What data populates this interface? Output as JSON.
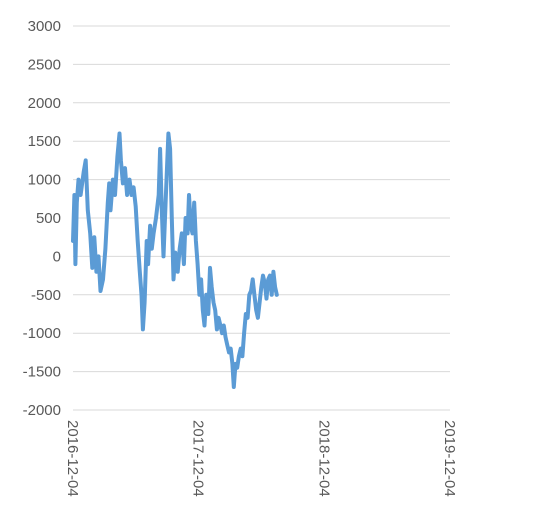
{
  "chart_data": {
    "type": "line",
    "title": "",
    "xlabel": "",
    "ylabel": "",
    "ylim": [
      -2000,
      3000
    ],
    "yticks": [
      3000,
      2500,
      2000,
      1500,
      1000,
      500,
      0,
      -500,
      -1000,
      -1500,
      -2000
    ],
    "xlim": [
      "2016-12-04",
      "2019-12-04"
    ],
    "xticks": [
      "2016-12-04",
      "2017-12-04",
      "2018-12-04",
      "2019-12-04"
    ],
    "grid": true,
    "legend": "none",
    "colors": {
      "series": "#5b9bd5",
      "grid": "#d9d9d9",
      "text": "#595959"
    },
    "series": [
      {
        "color": "#5b9bd5",
        "points": [
          [
            "2016-12-04",
            200
          ],
          [
            "2016-12-08",
            800
          ],
          [
            "2016-12-11",
            -100
          ],
          [
            "2016-12-15",
            700
          ],
          [
            "2016-12-20",
            1000
          ],
          [
            "2016-12-26",
            800
          ],
          [
            "2017-01-04",
            1100
          ],
          [
            "2017-01-10",
            1250
          ],
          [
            "2017-01-16",
            600
          ],
          [
            "2017-01-23",
            300
          ],
          [
            "2017-01-29",
            -150
          ],
          [
            "2017-02-04",
            250
          ],
          [
            "2017-02-10",
            -200
          ],
          [
            "2017-02-16",
            0
          ],
          [
            "2017-02-22",
            -450
          ],
          [
            "2017-03-01",
            -300
          ],
          [
            "2017-03-08",
            100
          ],
          [
            "2017-03-15",
            700
          ],
          [
            "2017-03-19",
            950
          ],
          [
            "2017-03-23",
            600
          ],
          [
            "2017-03-30",
            1000
          ],
          [
            "2017-04-05",
            800
          ],
          [
            "2017-04-12",
            1300
          ],
          [
            "2017-04-18",
            1600
          ],
          [
            "2017-04-22",
            1250
          ],
          [
            "2017-04-28",
            950
          ],
          [
            "2017-05-04",
            1150
          ],
          [
            "2017-05-10",
            800
          ],
          [
            "2017-05-17",
            1000
          ],
          [
            "2017-05-23",
            800
          ],
          [
            "2017-05-29",
            900
          ],
          [
            "2017-06-04",
            650
          ],
          [
            "2017-06-10",
            200
          ],
          [
            "2017-06-16",
            -200
          ],
          [
            "2017-06-21",
            -500
          ],
          [
            "2017-06-25",
            -950
          ],
          [
            "2017-06-30",
            -600
          ],
          [
            "2017-07-06",
            200
          ],
          [
            "2017-07-10",
            -100
          ],
          [
            "2017-07-16",
            400
          ],
          [
            "2017-07-21",
            100
          ],
          [
            "2017-07-26",
            300
          ],
          [
            "2017-08-02",
            500
          ],
          [
            "2017-08-10",
            800
          ],
          [
            "2017-08-14",
            1400
          ],
          [
            "2017-08-19",
            600
          ],
          [
            "2017-08-24",
            0
          ],
          [
            "2017-08-30",
            700
          ],
          [
            "2017-09-04",
            1250
          ],
          [
            "2017-09-07",
            1600
          ],
          [
            "2017-09-12",
            1400
          ],
          [
            "2017-09-17",
            500
          ],
          [
            "2017-09-22",
            -300
          ],
          [
            "2017-09-27",
            50
          ],
          [
            "2017-10-04",
            -200
          ],
          [
            "2017-10-10",
            100
          ],
          [
            "2017-10-16",
            300
          ],
          [
            "2017-10-22",
            -100
          ],
          [
            "2017-10-27",
            500
          ],
          [
            "2017-11-02",
            300
          ],
          [
            "2017-11-06",
            800
          ],
          [
            "2017-11-11",
            400
          ],
          [
            "2017-11-16",
            300
          ],
          [
            "2017-11-21",
            700
          ],
          [
            "2017-11-26",
            200
          ],
          [
            "2017-12-01",
            -100
          ],
          [
            "2017-12-06",
            -500
          ],
          [
            "2017-12-11",
            -300
          ],
          [
            "2017-12-16",
            -700
          ],
          [
            "2017-12-21",
            -900
          ],
          [
            "2017-12-26",
            -500
          ],
          [
            "2018-01-01",
            -750
          ],
          [
            "2018-01-06",
            -150
          ],
          [
            "2018-01-11",
            -400
          ],
          [
            "2018-01-16",
            -600
          ],
          [
            "2018-01-21",
            -700
          ],
          [
            "2018-01-26",
            -950
          ],
          [
            "2018-01-31",
            -800
          ],
          [
            "2018-02-05",
            -900
          ],
          [
            "2018-02-10",
            -1000
          ],
          [
            "2018-02-15",
            -900
          ],
          [
            "2018-02-20",
            -1050
          ],
          [
            "2018-02-25",
            -1150
          ],
          [
            "2018-03-02",
            -1250
          ],
          [
            "2018-03-07",
            -1200
          ],
          [
            "2018-03-12",
            -1400
          ],
          [
            "2018-03-16",
            -1700
          ],
          [
            "2018-03-21",
            -1400
          ],
          [
            "2018-03-26",
            -1450
          ],
          [
            "2018-03-31",
            -1300
          ],
          [
            "2018-04-05",
            -1200
          ],
          [
            "2018-04-10",
            -1300
          ],
          [
            "2018-04-15",
            -1000
          ],
          [
            "2018-04-20",
            -750
          ],
          [
            "2018-04-25",
            -800
          ],
          [
            "2018-04-30",
            -500
          ],
          [
            "2018-05-05",
            -450
          ],
          [
            "2018-05-10",
            -300
          ],
          [
            "2018-05-15",
            -500
          ],
          [
            "2018-05-20",
            -700
          ],
          [
            "2018-05-25",
            -800
          ],
          [
            "2018-05-30",
            -600
          ],
          [
            "2018-06-04",
            -400
          ],
          [
            "2018-06-09",
            -250
          ],
          [
            "2018-06-14",
            -350
          ],
          [
            "2018-06-19",
            -550
          ],
          [
            "2018-06-24",
            -300
          ],
          [
            "2018-06-29",
            -250
          ],
          [
            "2018-07-04",
            -500
          ],
          [
            "2018-07-09",
            -200
          ],
          [
            "2018-07-14",
            -400
          ],
          [
            "2018-07-19",
            -500
          ]
        ]
      }
    ]
  }
}
